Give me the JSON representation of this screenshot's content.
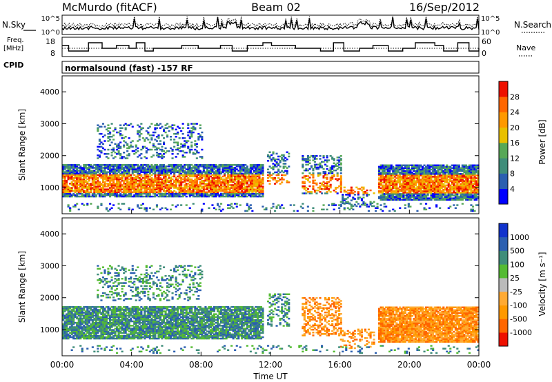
{
  "header": {
    "station": "McMurdo (fitACF)",
    "beam": "Beam 02",
    "date": "16/Sep/2012"
  },
  "noise_panel": {
    "left_label": "N.Sky",
    "right_label": "N.Search",
    "left_ticks": [
      "10^5",
      "10^0"
    ],
    "right_ticks": [
      "10^5",
      "10^0"
    ]
  },
  "freq_panel": {
    "left_label_line1": "Freq.",
    "left_label_line2": "[MHz]",
    "left_ticks": [
      "18",
      "8"
    ],
    "right_label": "Nave",
    "right_ticks": [
      "60",
      "0"
    ],
    "cpid_label": "CPID",
    "cpid_text": "normalsound (fast) -157 RF"
  },
  "chart_data": [
    {
      "type": "heatmap",
      "name": "power",
      "ylabel": "Slant Range [km]",
      "ylim": [
        180,
        4500
      ],
      "yticks": [
        1000,
        2000,
        3000,
        4000
      ],
      "xlim": [
        0,
        24
      ],
      "colorbar": {
        "label": "Power [dB]",
        "ticks": [
          "28",
          "24",
          "20",
          "16",
          "12",
          "8",
          "4"
        ],
        "colors": [
          "#0000ff",
          "#2b5fb0",
          "#3f8d7a",
          "#57a857",
          "#e8c000",
          "#ff9900",
          "#ff6600",
          "#ee1100"
        ]
      }
    },
    {
      "type": "heatmap",
      "name": "velocity",
      "ylabel": "Slant Range [km]",
      "ylim": [
        180,
        4500
      ],
      "yticks": [
        1000,
        2000,
        3000,
        4000
      ],
      "xlim": [
        0,
        24
      ],
      "colorbar": {
        "label": "Velocity [m s⁻¹]",
        "ticks": [
          "1000",
          "500",
          "100",
          "25",
          "-25",
          "-100",
          "-500",
          "-1000"
        ],
        "colors": [
          "#ee1100",
          "#ff6600",
          "#ff9900",
          "#ffaa33",
          "#bbbbbb",
          "#55bb33",
          "#3f8d7a",
          "#2b5fb0",
          "#1133cc"
        ]
      }
    }
  ],
  "x_axis": {
    "ticks": [
      "00:00",
      "04:00",
      "08:00",
      "12:00",
      "16:00",
      "20:00",
      "00:00"
    ],
    "label": "Time UT"
  }
}
